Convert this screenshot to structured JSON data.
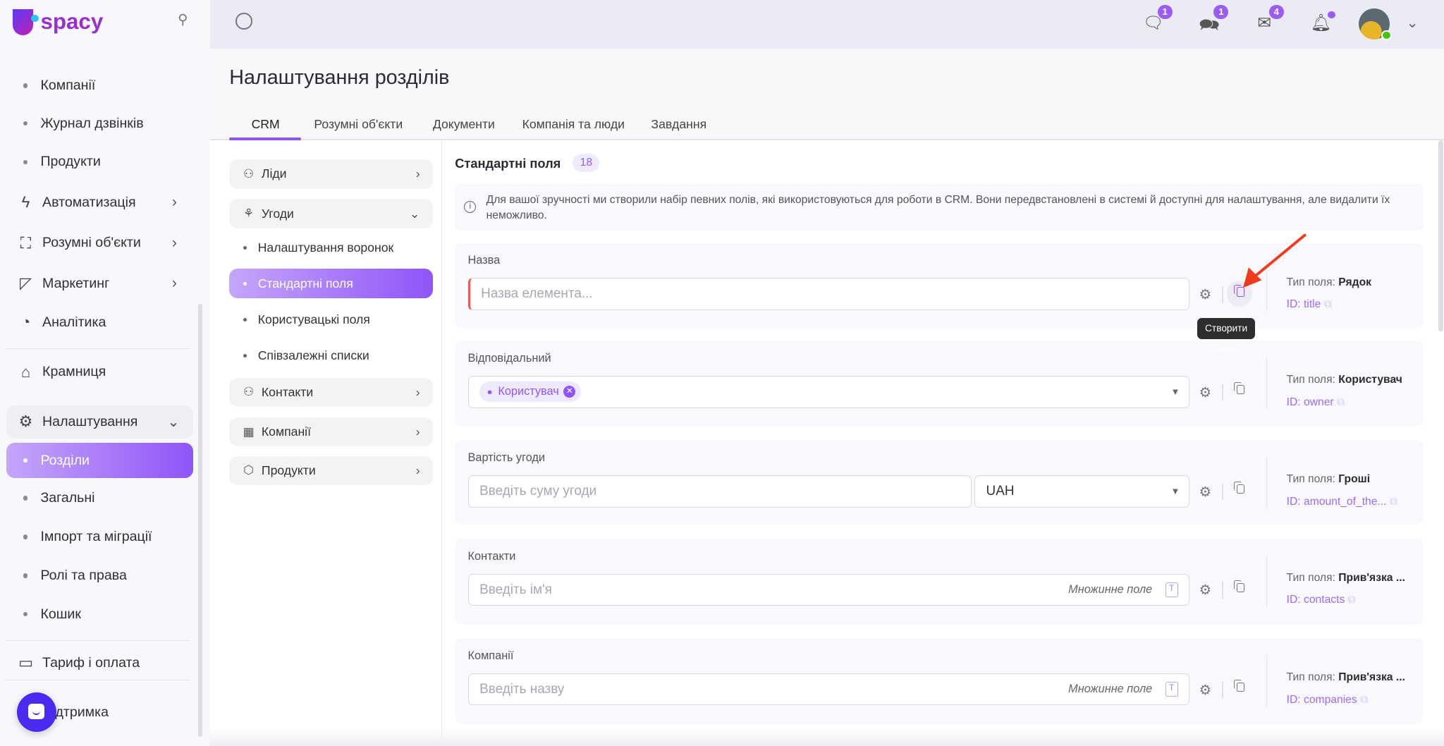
{
  "app": {
    "logo": "Uspacy"
  },
  "sidebar": {
    "items": [
      {
        "label": "Компанії",
        "type": "sub"
      },
      {
        "label": "Журнал дзвінків",
        "type": "sub"
      },
      {
        "label": "Продукти",
        "type": "sub"
      },
      {
        "label": "Автоматизація",
        "icon": "lightning-icon",
        "chevron": true
      },
      {
        "label": "Розумні об'єкти",
        "icon": "smart-object-icon",
        "chevron": true
      },
      {
        "label": "Маркетинг",
        "icon": "megaphone-icon",
        "chevron": true
      },
      {
        "label": "Аналітика",
        "icon": "chart-pie-icon"
      },
      {
        "label": "Крамниця",
        "icon": "store-icon"
      },
      {
        "label": "Налаштування",
        "icon": "gear-icon",
        "expanded": true
      },
      {
        "label": "Розділи",
        "type": "sub",
        "active": true
      },
      {
        "label": "Загальні",
        "type": "sub"
      },
      {
        "label": "Імпорт та міграції",
        "type": "sub"
      },
      {
        "label": "Ролі та права",
        "type": "sub"
      },
      {
        "label": "Кошик",
        "type": "sub"
      },
      {
        "label": "Тариф і оплата",
        "icon": "wallet-icon"
      },
      {
        "label": "Підтримка",
        "icon": "support-icon"
      }
    ]
  },
  "topbar": {
    "badges": {
      "chat": "1",
      "messages": "1",
      "mail": "4"
    },
    "notification_dot": true,
    "user_status": "online"
  },
  "page": {
    "title": "Налаштування розділів",
    "tabs": [
      "CRM",
      "Розумні об'єкти",
      "Документи",
      "Компанія та люди",
      "Завдання"
    ],
    "active_tab": 0
  },
  "panel": {
    "items": [
      {
        "label": "Ліди",
        "icon": "lead-icon"
      },
      {
        "label": "Угоди",
        "icon": "deal-icon",
        "expanded": true
      },
      {
        "label": "Контакти",
        "icon": "contacts-icon"
      },
      {
        "label": "Компанії",
        "icon": "building-icon"
      },
      {
        "label": "Продукти",
        "icon": "box-icon"
      }
    ],
    "deal_subitems": [
      "Налаштування воронок",
      "Стандартні поля",
      "Користувацькі поля",
      "Співзалежні списки"
    ],
    "active_subitem": 1
  },
  "main": {
    "heading": "Стандартні поля",
    "count": "18",
    "info": "Для вашої зручності ми створили набір певних полів, які використовуються для роботи в CRM. Вони передвстановлені в системі й доступні для налаштування, але видалити їх неможливо.",
    "type_label": "Тип поля:",
    "multi_label": "Множинне поле",
    "tooltip": "Створити копію",
    "fields": [
      {
        "label": "Назва",
        "placeholder": "Назва елемента...",
        "type": "Рядок",
        "id": "ID: title"
      },
      {
        "label": "Відповідальний",
        "chip": "Користувач",
        "type": "Користувач",
        "id": "ID: owner"
      },
      {
        "label": "Вартість угоди",
        "placeholder": "Введіть суму угоди",
        "currency": "UAH",
        "type": "Гроші",
        "id": "ID: amount_of_the..."
      },
      {
        "label": "Контакти",
        "placeholder": "Введіть ім'я",
        "type": "Прив'язка ...",
        "id": "ID: contacts"
      },
      {
        "label": "Компанії",
        "placeholder": "Введіть назву",
        "type": "Прив'язка ...",
        "id": "ID: companies"
      }
    ]
  },
  "colors": {
    "accent": "#9b5cf6",
    "required": "#f0565a",
    "arrow": "#f03a1e"
  }
}
